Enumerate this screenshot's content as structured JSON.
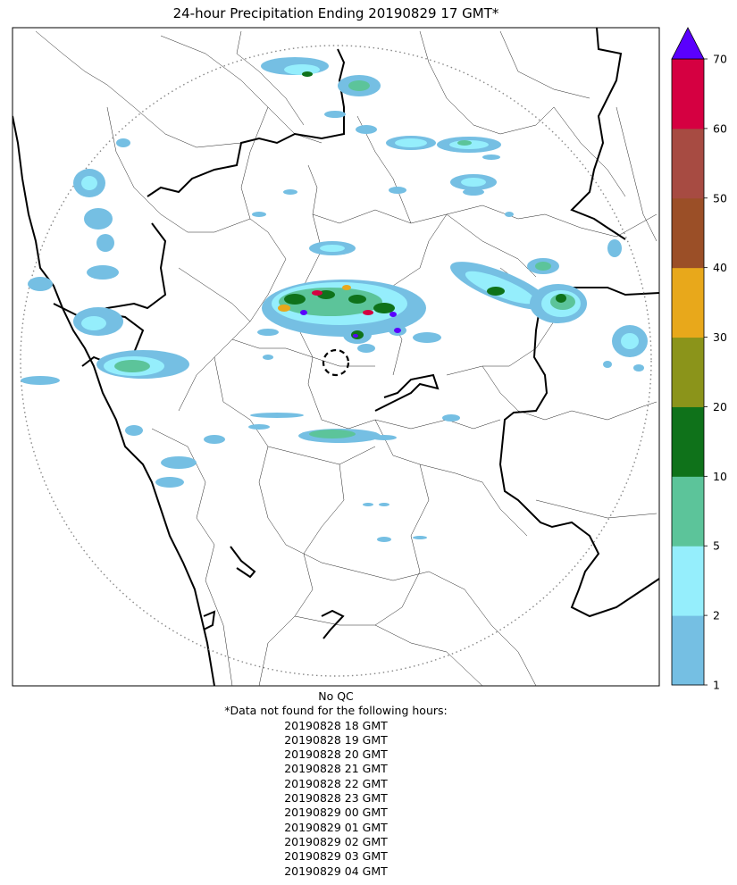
{
  "title": "24-hour Precipitation Ending 20190829 17 GMT*",
  "colorbar": {
    "ticks": [
      "1",
      "2",
      "5",
      "10",
      "20",
      "30",
      "40",
      "50",
      "60",
      "70"
    ],
    "colors": [
      "#75bfe3",
      "#95eefc",
      "#5cc49a",
      "#0f721a",
      "#8b941a",
      "#e8a81b",
      "#9b4f27",
      "#a74b42",
      "#d50041"
    ],
    "extend_color": "#5a00fd"
  },
  "notes": {
    "qc": "No QC",
    "missing_header": "*Data not found for the following hours:",
    "missing_hours": [
      "20190828 18 GMT",
      "20190828 19 GMT",
      "20190828 20 GMT",
      "20190828 21 GMT",
      "20190828 22 GMT",
      "20190828 23 GMT",
      "20190829 00 GMT",
      "20190829 01 GMT",
      "20190829 02 GMT",
      "20190829 03 GMT",
      "20190829 04 GMT"
    ]
  }
}
